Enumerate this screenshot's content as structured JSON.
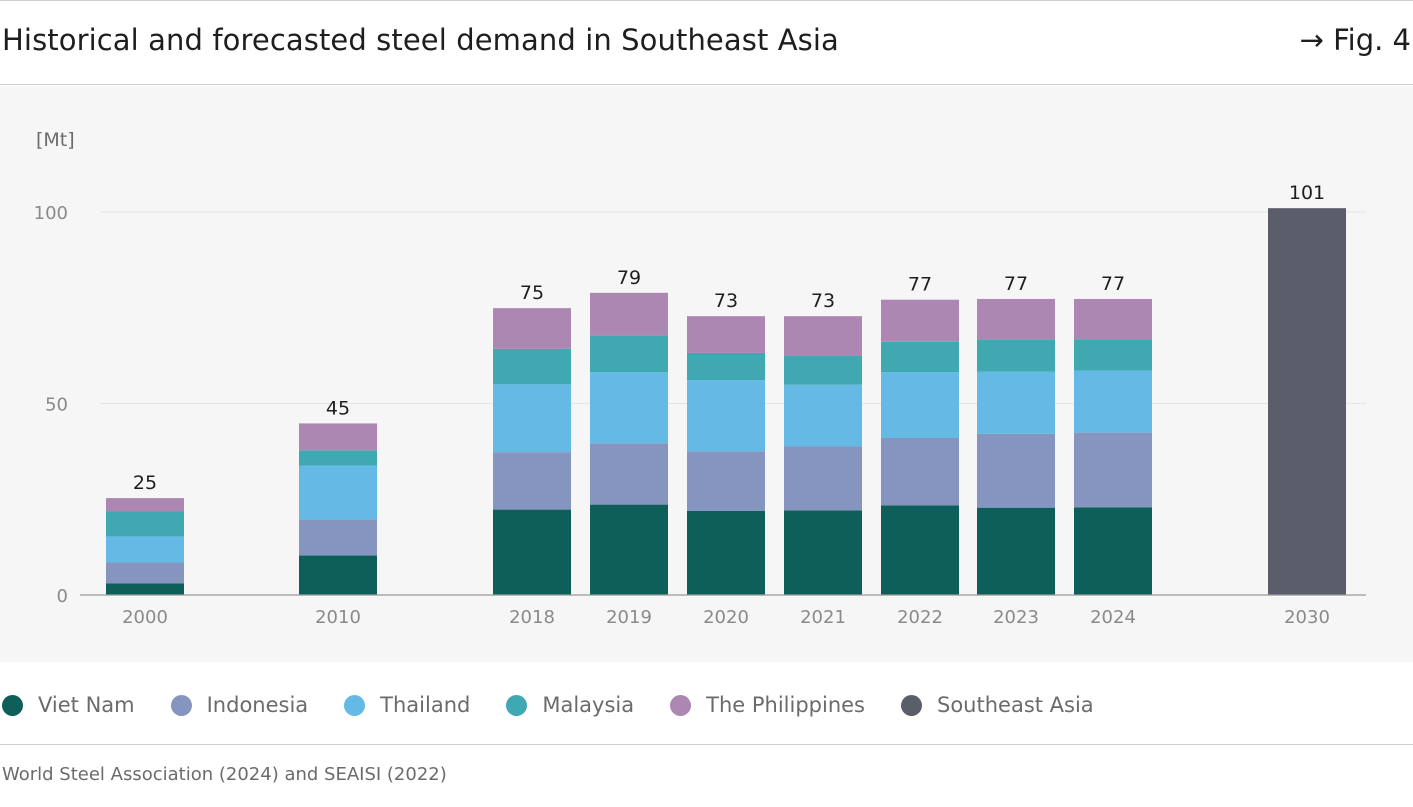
{
  "header": {
    "title": "Historical and forecasted steel demand in Southeast Asia",
    "fig_ref": "→ Fig. 4"
  },
  "source": "World Steel Association (2024) and SEAISI (2022)",
  "legend": [
    {
      "label": "Viet Nam",
      "color": "#0e5f59"
    },
    {
      "label": "Indonesia",
      "color": "#8595c0"
    },
    {
      "label": "Thailand",
      "color": "#64b9e5"
    },
    {
      "label": "Malaysia",
      "color": "#40a8b0"
    },
    {
      "label": "The Philippines",
      "color": "#ac87b1"
    },
    {
      "label": "Southeast Asia",
      "color": "#5b5d6b"
    }
  ],
  "chart_data": {
    "type": "bar",
    "stacked": true,
    "title": "Historical and forecasted steel demand in Southeast Asia",
    "ylabel": "[Mt]",
    "xlabel": "",
    "ylim": [
      0,
      100
    ],
    "yticks": [
      0,
      50,
      100
    ],
    "grid": true,
    "categories": [
      "2000",
      "2010",
      "2018",
      "2019",
      "2020",
      "2021",
      "2022",
      "2023",
      "2024",
      "2030"
    ],
    "series": [
      {
        "name": "Viet Nam",
        "color": "#0e5f59",
        "values": [
          3,
          10.3,
          22.3,
          23.6,
          22,
          22.1,
          23.4,
          22.8,
          22.9,
          null
        ]
      },
      {
        "name": "Indonesia",
        "color": "#8595c0",
        "values": [
          5.5,
          9.5,
          15,
          16,
          15.5,
          16.7,
          17.6,
          19.3,
          19.5,
          null
        ]
      },
      {
        "name": "Thailand",
        "color": "#64b9e5",
        "values": [
          6.8,
          14,
          17.7,
          18.6,
          18.6,
          16.1,
          17.2,
          16.2,
          16.2,
          null
        ]
      },
      {
        "name": "Malaysia",
        "color": "#40a8b0",
        "values": [
          6.5,
          4,
          9.3,
          9.6,
          7.1,
          7.6,
          7.9,
          8.3,
          8.2,
          null
        ]
      },
      {
        "name": "The Philippines",
        "color": "#ac87b1",
        "values": [
          3.5,
          7,
          10.6,
          11.1,
          9.6,
          10.3,
          11,
          10.7,
          10.5,
          null
        ]
      },
      {
        "name": "Southeast Asia",
        "color": "#5b5d6b",
        "values": [
          null,
          null,
          null,
          null,
          null,
          null,
          null,
          null,
          null,
          101
        ]
      }
    ],
    "totals": [
      25,
      45,
      75,
      79,
      73,
      73,
      77,
      77,
      77,
      101
    ]
  }
}
